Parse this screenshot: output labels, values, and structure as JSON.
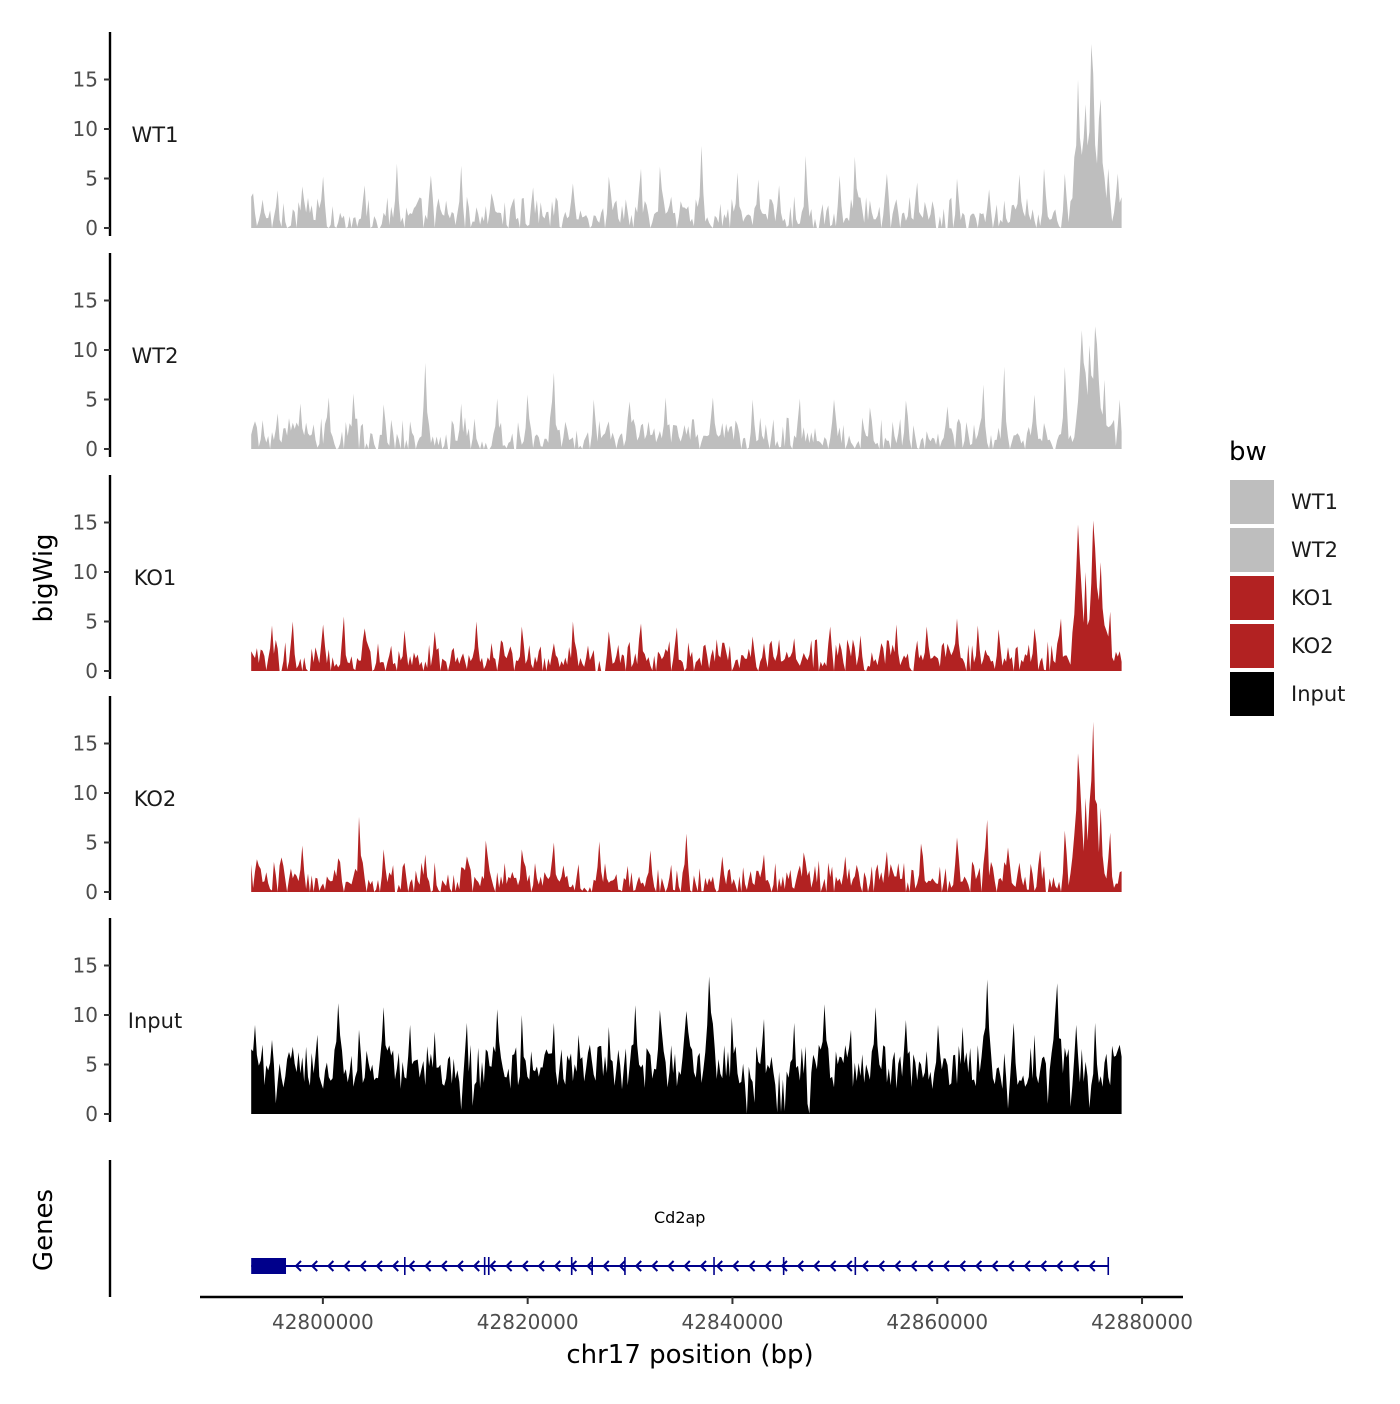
{
  "chart_data": {
    "type": "area",
    "description_title": "",
    "ylabel": "bigWig",
    "genes_label": "Genes",
    "xlabel": "chr17 position (bp)",
    "xlim": [
      42788000,
      42884000
    ],
    "data_xrange": [
      42793000,
      42878000
    ],
    "x_ticks": [
      42800000,
      42820000,
      42840000,
      42860000,
      42880000
    ],
    "x_tick_labels": [
      "42800000",
      "42820000",
      "42840000",
      "42860000",
      "42880000"
    ],
    "ylim": [
      0,
      20
    ],
    "y_ticks": [
      0,
      5,
      10,
      15
    ],
    "y_tick_labels": [
      "0",
      "5",
      "10",
      "15"
    ],
    "legend": {
      "title": "bw",
      "entries": [
        {
          "label": "WT1",
          "color": "#bebebe"
        },
        {
          "label": "WT2",
          "color": "#bebebe"
        },
        {
          "label": "KO1",
          "color": "#b22222"
        },
        {
          "label": "KO2",
          "color": "#b22222"
        },
        {
          "label": "Input",
          "color": "#000000"
        }
      ]
    },
    "tracks": [
      {
        "name": "WT1",
        "color": "#bebebe",
        "peaks": [
          [
            42793200,
            3.5
          ],
          [
            42795500,
            3.8
          ],
          [
            42798000,
            4.2
          ],
          [
            42800000,
            5.2
          ],
          [
            42804000,
            4.3
          ],
          [
            42807200,
            6.5
          ],
          [
            42810500,
            5.3
          ],
          [
            42813500,
            6.3
          ],
          [
            42816500,
            3.5
          ],
          [
            42820500,
            4.1
          ],
          [
            42824500,
            4.5
          ],
          [
            42828000,
            5.2
          ],
          [
            42831000,
            6.0
          ],
          [
            42833000,
            6.2
          ],
          [
            42837000,
            8.3
          ],
          [
            42840500,
            5.6
          ],
          [
            42842500,
            4.9
          ],
          [
            42844500,
            4.3
          ],
          [
            42847200,
            7.3
          ],
          [
            42850500,
            5.3
          ],
          [
            42852000,
            7.2
          ],
          [
            42855000,
            5.5
          ],
          [
            42858000,
            4.6
          ],
          [
            42862000,
            5.0
          ],
          [
            42865000,
            3.9
          ],
          [
            42868000,
            5.4
          ],
          [
            42870500,
            6.0
          ],
          [
            42872500,
            5.5
          ],
          [
            42873800,
            15.0
          ],
          [
            42874500,
            12.5
          ],
          [
            42875100,
            18.6
          ],
          [
            42875900,
            13.0
          ],
          [
            42876700,
            6.0
          ],
          [
            42877600,
            5.5
          ]
        ]
      },
      {
        "name": "WT2",
        "color": "#bebebe",
        "peaks": [
          [
            42793300,
            2.8
          ],
          [
            42795500,
            3.6
          ],
          [
            42797800,
            4.6
          ],
          [
            42800500,
            5.2
          ],
          [
            42803000,
            5.6
          ],
          [
            42806000,
            4.5
          ],
          [
            42810000,
            8.7
          ],
          [
            42813500,
            4.6
          ],
          [
            42817000,
            5.1
          ],
          [
            42820000,
            5.5
          ],
          [
            42822500,
            7.7
          ],
          [
            42826500,
            5.0
          ],
          [
            42830000,
            4.8
          ],
          [
            42833500,
            5.2
          ],
          [
            42838000,
            5.2
          ],
          [
            42842000,
            5.0
          ],
          [
            42846500,
            5.1
          ],
          [
            42850000,
            5.0
          ],
          [
            42853500,
            4.2
          ],
          [
            42857000,
            4.9
          ],
          [
            42861000,
            4.3
          ],
          [
            42864500,
            6.5
          ],
          [
            42866500,
            8.3
          ],
          [
            42869500,
            5.5
          ],
          [
            42872500,
            8.3
          ],
          [
            42874200,
            12.0
          ],
          [
            42874900,
            10.5
          ],
          [
            42875500,
            12.4
          ],
          [
            42876300,
            7.0
          ],
          [
            42877800,
            5.0
          ]
        ]
      },
      {
        "name": "KO1",
        "color": "#b22222",
        "peaks": [
          [
            42793000,
            2.0
          ],
          [
            42795000,
            4.6
          ],
          [
            42797000,
            5.0
          ],
          [
            42800000,
            4.7
          ],
          [
            42802000,
            5.5
          ],
          [
            42804000,
            4.3
          ],
          [
            42808000,
            4.1
          ],
          [
            42811000,
            4.0
          ],
          [
            42815000,
            5.0
          ],
          [
            42819500,
            4.5
          ],
          [
            42822500,
            2.8
          ],
          [
            42824500,
            5.0
          ],
          [
            42828000,
            4.0
          ],
          [
            42831000,
            4.8
          ],
          [
            42834500,
            4.4
          ],
          [
            42838500,
            3.2
          ],
          [
            42842000,
            3.5
          ],
          [
            42846000,
            3.3
          ],
          [
            42849500,
            4.5
          ],
          [
            42852500,
            3.6
          ],
          [
            42856000,
            4.7
          ],
          [
            42859000,
            4.5
          ],
          [
            42862000,
            5.3
          ],
          [
            42864000,
            4.6
          ],
          [
            42866000,
            4.2
          ],
          [
            42869500,
            4.3
          ],
          [
            42872000,
            5.3
          ],
          [
            42873800,
            14.8
          ],
          [
            42874500,
            10.0
          ],
          [
            42875300,
            15.2
          ],
          [
            42876000,
            11.0
          ],
          [
            42876800,
            6.0
          ],
          [
            42877800,
            2.0
          ]
        ]
      },
      {
        "name": "KO2",
        "color": "#b22222",
        "peaks": [
          [
            42793500,
            3.3
          ],
          [
            42796000,
            3.5
          ],
          [
            42798000,
            4.7
          ],
          [
            42801500,
            3.4
          ],
          [
            42803600,
            7.6
          ],
          [
            42806000,
            4.3
          ],
          [
            42810000,
            3.8
          ],
          [
            42814000,
            3.6
          ],
          [
            42816000,
            5.2
          ],
          [
            42819500,
            4.3
          ],
          [
            42822500,
            5.0
          ],
          [
            42827000,
            5.1
          ],
          [
            42832000,
            4.2
          ],
          [
            42835500,
            5.9
          ],
          [
            42839000,
            3.6
          ],
          [
            42843000,
            3.8
          ],
          [
            42847000,
            4.0
          ],
          [
            42851000,
            3.6
          ],
          [
            42855000,
            4.1
          ],
          [
            42858500,
            4.9
          ],
          [
            42862000,
            5.5
          ],
          [
            42864800,
            7.3
          ],
          [
            42867000,
            4.5
          ],
          [
            42870000,
            4.2
          ],
          [
            42872500,
            6.2
          ],
          [
            42873800,
            14.0
          ],
          [
            42874500,
            9.5
          ],
          [
            42875200,
            17.2
          ],
          [
            42876000,
            8.5
          ],
          [
            42876800,
            6.0
          ],
          [
            42877800,
            2.0
          ]
        ]
      },
      {
        "name": "Input",
        "color": "#000000",
        "peaks": [
          [
            42793300,
            9.0
          ],
          [
            42795000,
            7.5
          ],
          [
            42797000,
            6.8
          ],
          [
            42799500,
            8.0
          ],
          [
            42801500,
            11.2
          ],
          [
            42803500,
            8.5
          ],
          [
            42806000,
            10.8
          ],
          [
            42808500,
            9.0
          ],
          [
            42811000,
            8.3
          ],
          [
            42814000,
            9.2
          ],
          [
            42817000,
            10.6
          ],
          [
            42819500,
            10.0
          ],
          [
            42822500,
            9.2
          ],
          [
            42825000,
            8.0
          ],
          [
            42828000,
            8.8
          ],
          [
            42830500,
            11.0
          ],
          [
            42833000,
            10.5
          ],
          [
            42835500,
            10.4
          ],
          [
            42837800,
            13.9
          ],
          [
            42840000,
            9.8
          ],
          [
            42843000,
            9.6
          ],
          [
            42846000,
            9.2
          ],
          [
            42849000,
            11.1
          ],
          [
            42851500,
            8.5
          ],
          [
            42854000,
            10.8
          ],
          [
            42857000,
            9.5
          ],
          [
            42860000,
            9.0
          ],
          [
            42862500,
            8.8
          ],
          [
            42864800,
            13.6
          ],
          [
            42867500,
            9.2
          ],
          [
            42869500,
            8.0
          ],
          [
            42871700,
            13.2
          ],
          [
            42873500,
            9.0
          ],
          [
            42875500,
            9.2
          ],
          [
            42877800,
            7.0
          ]
        ]
      }
    ],
    "gene_track": {
      "gene_name": "Cd2ap",
      "strand": "-",
      "start": 42793000,
      "end": 42876700,
      "color": "#00008b",
      "utr_block": [
        42793000,
        42796400
      ],
      "exons": [
        42808000,
        42815800,
        42816200,
        42824300,
        42826300,
        42829500,
        42838200,
        42845000,
        42852000
      ]
    }
  }
}
